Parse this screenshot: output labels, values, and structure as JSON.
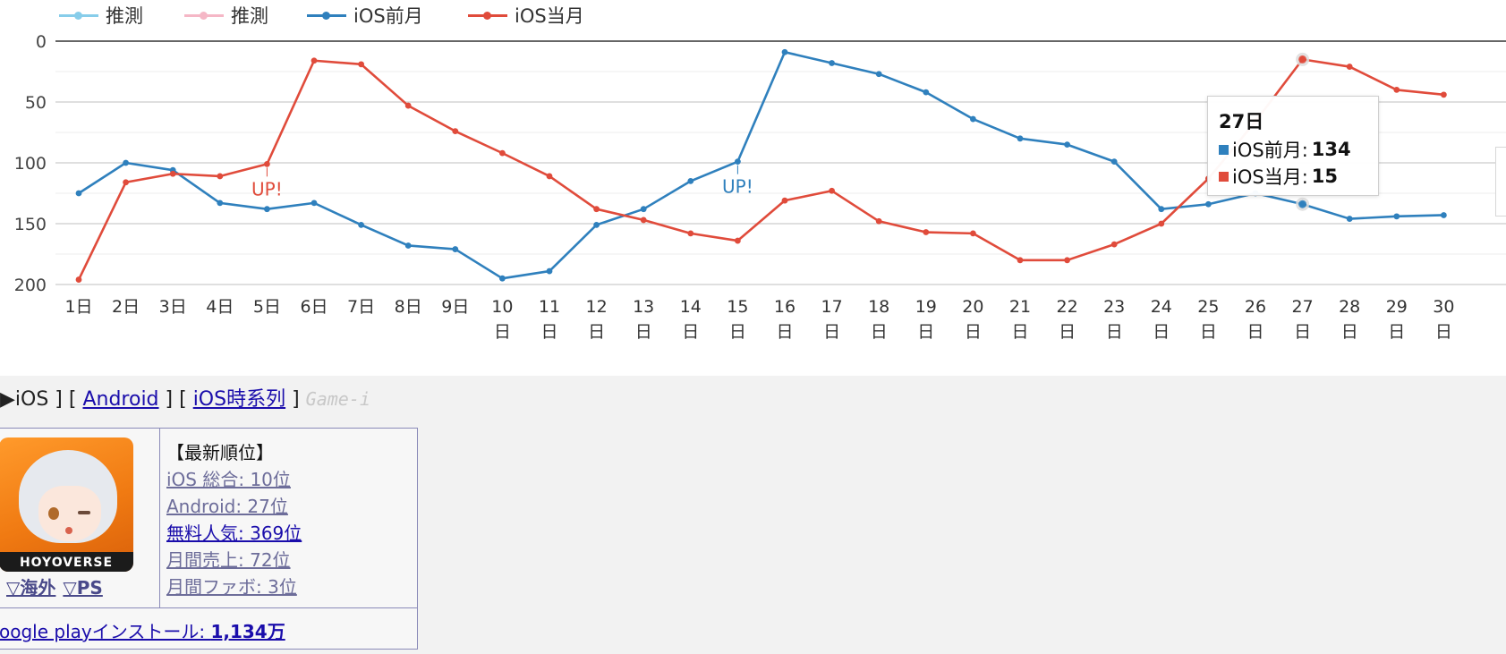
{
  "legend": [
    {
      "label": "推測",
      "color": "#87cdea"
    },
    {
      "label": "推測",
      "color": "#f5b7c6"
    },
    {
      "label": "iOS前月",
      "color": "#2f80bd"
    },
    {
      "label": "iOS当月",
      "color": "#e04b3b"
    }
  ],
  "chart_data": {
    "type": "line",
    "categories": [
      "1日",
      "2日",
      "3日",
      "4日",
      "5日",
      "6日",
      "7日",
      "8日",
      "9日",
      "10日",
      "11日",
      "12日",
      "13日",
      "14日",
      "15日",
      "16日",
      "17日",
      "18日",
      "19日",
      "20日",
      "21日",
      "22日",
      "23日",
      "24日",
      "25日",
      "26日",
      "27日",
      "28日",
      "29日",
      "30日"
    ],
    "series": [
      {
        "name": "iOS前月",
        "color": "#2f80bd",
        "values": [
          125,
          100,
          106,
          133,
          138,
          133,
          151,
          168,
          171,
          195,
          189,
          151,
          138,
          115,
          99,
          9,
          18,
          27,
          42,
          64,
          80,
          85,
          99,
          138,
          134,
          125,
          134,
          146,
          144,
          143
        ]
      },
      {
        "name": "iOS当月",
        "color": "#e04b3b",
        "values": [
          196,
          116,
          109,
          111,
          101,
          16,
          19,
          53,
          74,
          92,
          111,
          138,
          147,
          158,
          164,
          131,
          123,
          148,
          157,
          158,
          180,
          180,
          167,
          150,
          113,
          66,
          15,
          21,
          40,
          44
        ]
      }
    ],
    "y_reversed": true,
    "ylim": [
      0,
      200
    ],
    "yticks": [
      0,
      50,
      100,
      150,
      200
    ],
    "grid": true,
    "annotations": [
      {
        "text": "UP!",
        "category": "5日",
        "series": "iOS当月",
        "color": "#e04b3b"
      },
      {
        "text": "UP!",
        "category": "15日",
        "series": "iOS前月",
        "color": "#2f80bd"
      }
    ],
    "tooltip": {
      "category": "27日",
      "title": "27日",
      "rows": [
        {
          "label": "iOS前月: ",
          "value": "134",
          "color": "#2f80bd"
        },
        {
          "label": "iOS当月: ",
          "value": "15",
          "color": "#e04b3b"
        }
      ]
    }
  },
  "nav": {
    "prefix": "▶iOS ] [ ",
    "android": "Android",
    "sep": " ] [ ",
    "ios_series": "iOS時系列",
    "suffix": " ] ",
    "gamei": "Game-i"
  },
  "app": {
    "icon_name": "app-icon",
    "brand": "HOYOVERSE",
    "region_overseas": "▽海外",
    "region_ps": "▽PS",
    "rank_heading": "【最新順位】",
    "ranks": [
      "iOS 総合: 10位",
      "Android: 27位",
      "無料人気: 369位",
      "月間売上: 72位",
      "月間ファボ: 3位"
    ],
    "install_prefix": "oogle playインストール: ",
    "install_value": "1,134万"
  }
}
